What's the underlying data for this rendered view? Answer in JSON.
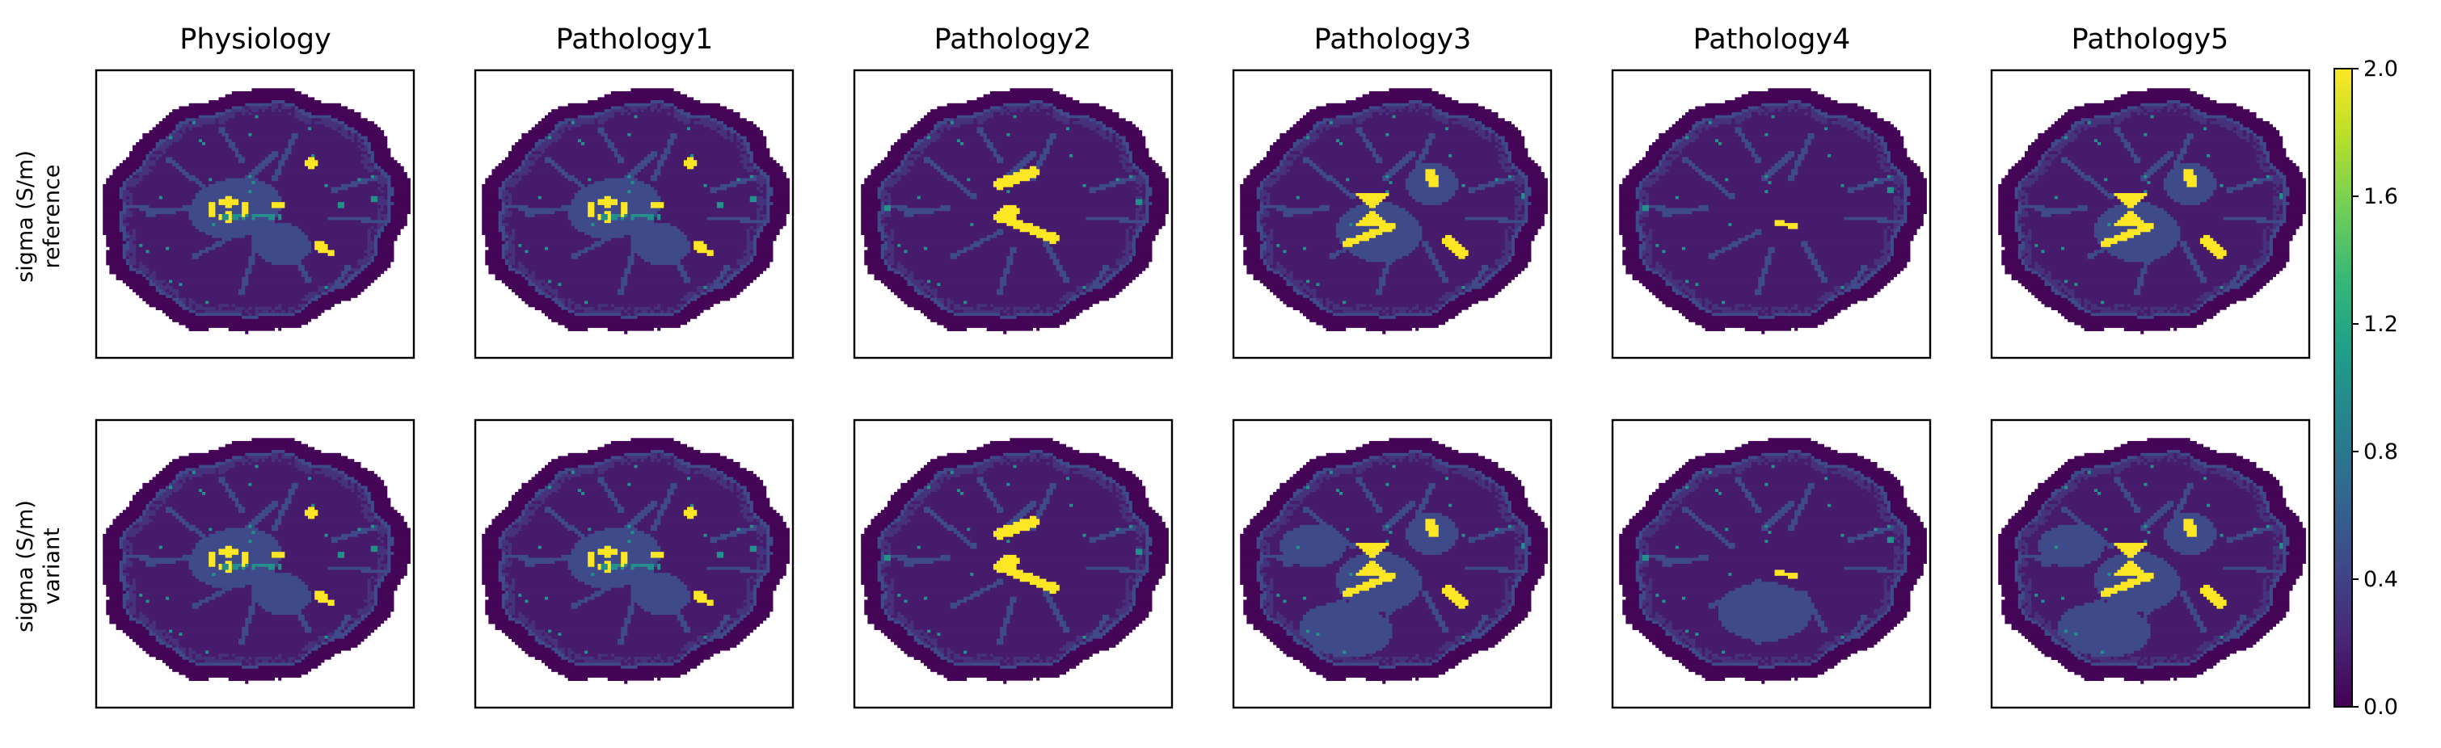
{
  "chart_data": {
    "type": "heatmap",
    "columns": [
      "Physiology",
      "Pathology1",
      "Pathology2",
      "Pathology3",
      "Pathology4",
      "Pathology5"
    ],
    "rows": [
      {
        "label_line1": "sigma (S/m)",
        "label_line2": "reference"
      },
      {
        "label_line1": "sigma (S/m)",
        "label_line2": "variant"
      }
    ],
    "colormap": "viridis",
    "colorbar": {
      "range": [
        0.0,
        2.0
      ],
      "ticks": [
        0.0,
        0.4,
        0.8,
        1.2,
        1.6,
        2.0
      ],
      "tick_labels": [
        "0.0",
        "0.4",
        "0.8",
        "1.2",
        "1.6",
        "2.0"
      ]
    },
    "axis_ticks": false,
    "grid": false,
    "panel_types": {
      "Physiology": "normal",
      "Pathology1": "normal",
      "Pathology2": "large_ventricles",
      "Pathology3": "butterfly",
      "Pathology4": "small_ventricles",
      "Pathology5": "butterfly"
    },
    "tissue_conductivities": {
      "background": 0.0,
      "skull": 0.02,
      "white_matter": 0.15,
      "grey_matter": 0.28,
      "deep_grey": 0.45,
      "csf": 2.0,
      "vessel": 1.0
    },
    "colors": {
      "viridis_0": "#440154",
      "viridis_1": "#482878",
      "viridis_2": "#3e4989",
      "viridis_3": "#31688e",
      "viridis_4": "#26828e",
      "viridis_5": "#1f9e89",
      "viridis_6": "#35b779",
      "viridis_7": "#6ece58",
      "viridis_8": "#b5de2b",
      "viridis_9": "#fde725"
    }
  }
}
